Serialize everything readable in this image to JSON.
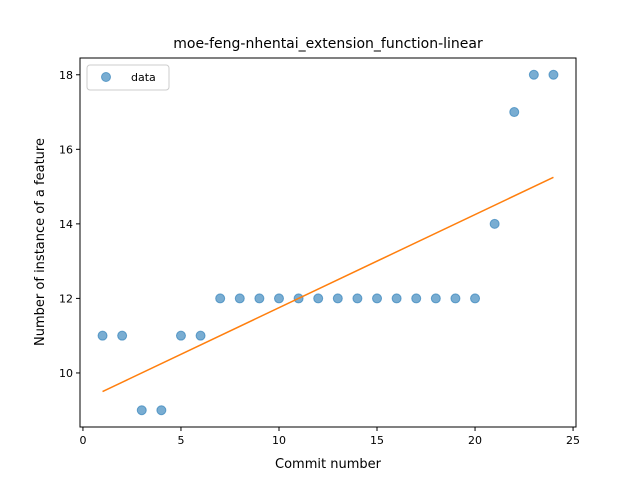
{
  "chart_data": {
    "type": "scatter",
    "title": "moe-feng-nhentai_extension_function-linear",
    "xlabel": "Commit number",
    "ylabel": "Number of instance of a feature",
    "xlim": [
      -0.15,
      25.15
    ],
    "ylim": [
      8.55,
      18.45
    ],
    "xticks": [
      0,
      5,
      10,
      15,
      20,
      25
    ],
    "yticks": [
      10,
      12,
      14,
      16,
      18
    ],
    "legend": {
      "placement": "top-left",
      "entries": [
        "data"
      ]
    },
    "grid": false,
    "series": [
      {
        "name": "data",
        "kind": "scatter",
        "color": "#1f77b4",
        "x": [
          1,
          2,
          3,
          4,
          5,
          6,
          7,
          8,
          9,
          10,
          11,
          12,
          13,
          14,
          15,
          16,
          17,
          18,
          19,
          20,
          21,
          22,
          23,
          24
        ],
        "y": [
          11,
          11,
          9,
          9,
          11,
          11,
          12,
          12,
          12,
          12,
          12,
          12,
          12,
          12,
          12,
          12,
          12,
          12,
          12,
          12,
          14,
          17,
          18,
          18
        ]
      },
      {
        "kind": "line",
        "color": "#ff7f0e",
        "x": [
          1,
          24
        ],
        "y": [
          9.5,
          15.25
        ]
      }
    ]
  }
}
